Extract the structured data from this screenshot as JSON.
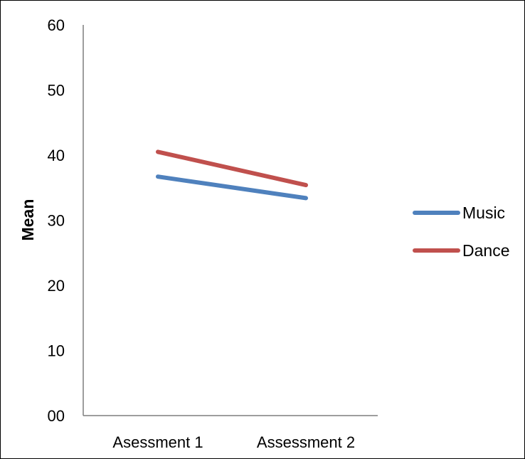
{
  "chart_data": {
    "type": "line",
    "title": "",
    "xlabel": "",
    "ylabel": "Mean",
    "categories": [
      "Asessment 1",
      "Assessment 2"
    ],
    "ylim": [
      0,
      60
    ],
    "yticks": [
      0,
      10,
      20,
      30,
      40,
      50,
      60
    ],
    "ytick_labels": [
      "00",
      "10",
      "20",
      "30",
      "40",
      "50",
      "60"
    ],
    "grid": false,
    "legend_position": "right",
    "series": [
      {
        "name": "Music",
        "values": [
          36.7,
          33.4
        ],
        "color": "#4f81bd"
      },
      {
        "name": "Dance",
        "values": [
          40.5,
          35.4
        ],
        "color": "#c0504d"
      }
    ]
  }
}
